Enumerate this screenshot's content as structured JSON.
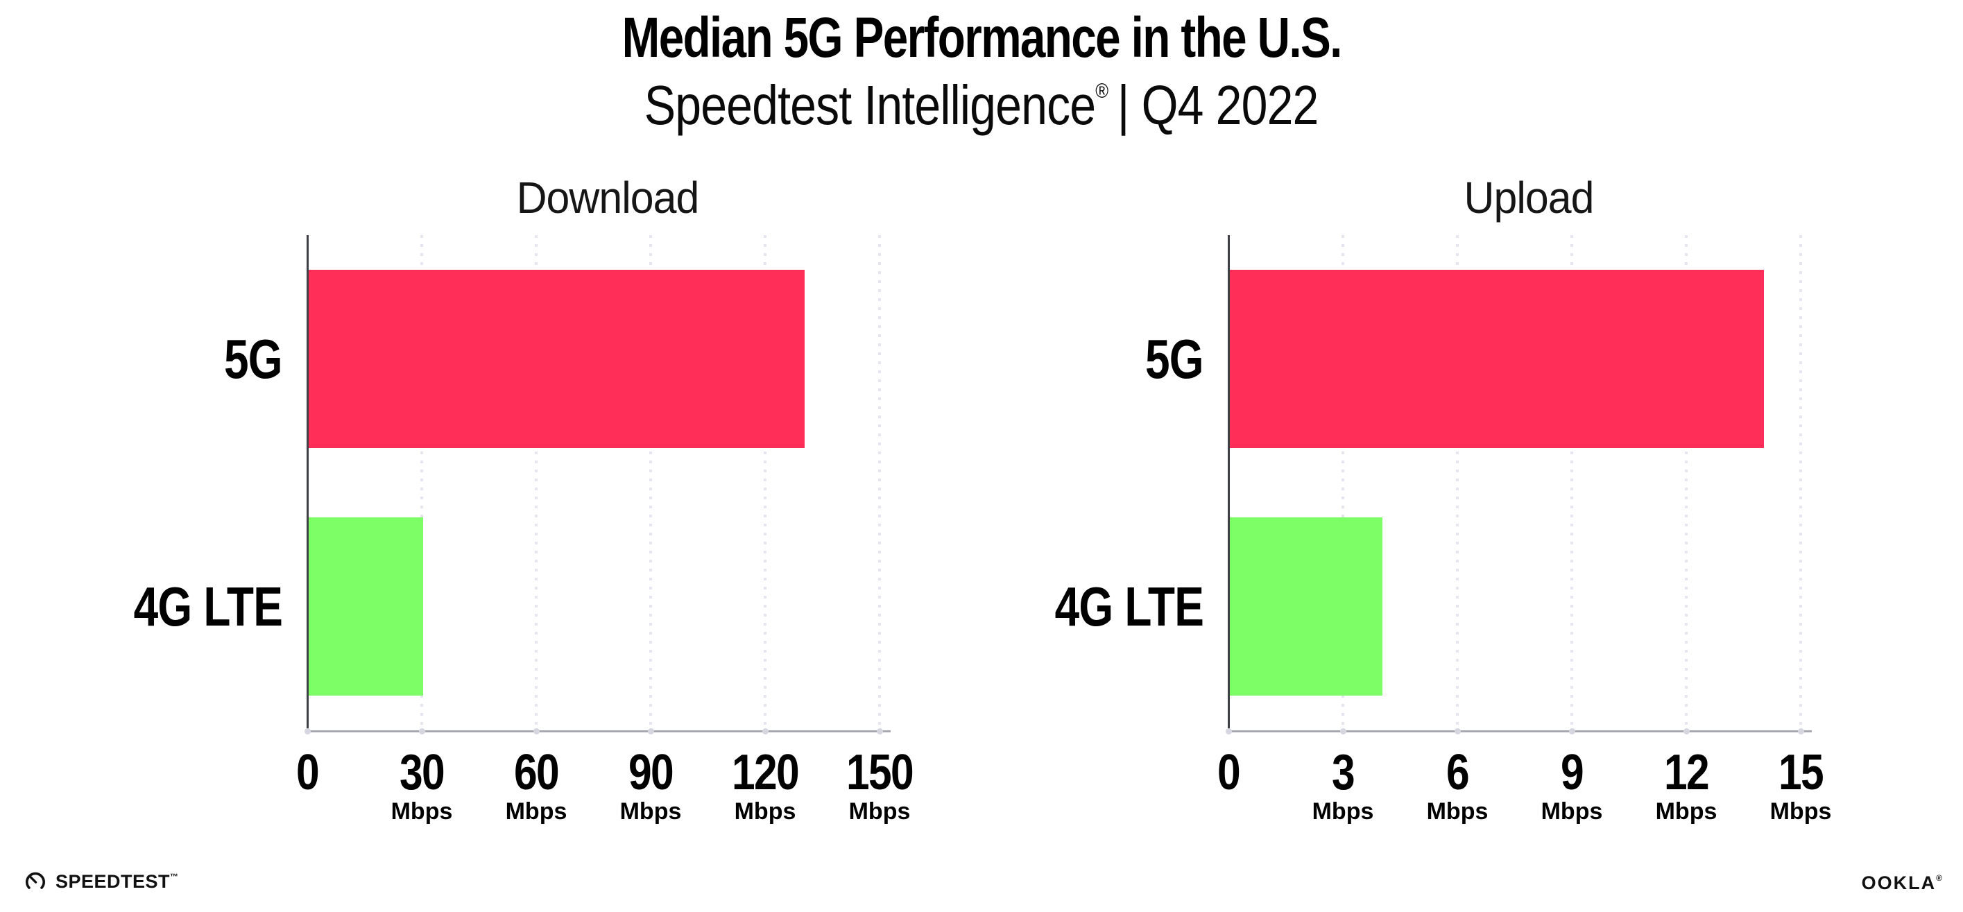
{
  "page": {
    "title": "Median 5G Performance in the U.S.",
    "subtitle_brand": "Speedtest Intelligence",
    "subtitle_reg": "®",
    "subtitle_period": "| Q4 2022",
    "background": "#FFFFFF"
  },
  "chart_data": [
    {
      "type": "bar",
      "orientation": "horizontal",
      "title": "Download",
      "categories": [
        "5G",
        "4G LTE"
      ],
      "values": [
        130,
        30
      ],
      "unit": "Mbps",
      "xlim": [
        0,
        150
      ],
      "ticks": [
        0,
        30,
        60,
        90,
        120,
        150
      ],
      "tick_unit_label": "Mbps",
      "bar_colors": [
        "#FF2E59",
        "#7EFE66"
      ],
      "grid": "dotted-vertical",
      "legend": "none"
    },
    {
      "type": "bar",
      "orientation": "horizontal",
      "title": "Upload",
      "categories": [
        "5G",
        "4G LTE"
      ],
      "values": [
        14,
        4
      ],
      "unit": "Mbps",
      "xlim": [
        0,
        15
      ],
      "ticks": [
        0,
        3,
        6,
        9,
        12,
        15
      ],
      "tick_unit_label": "Mbps",
      "bar_colors": [
        "#FF2E59",
        "#7EFE66"
      ],
      "grid": "dotted-vertical",
      "legend": "none"
    }
  ],
  "colors": {
    "bar_5g": "#FF2E59",
    "bar_4g_lte": "#7EFE66",
    "gridline": "#E6E6F0",
    "x_axis": "#A8A8B0",
    "y_axis": "#3F3F46",
    "tick_dot": "#D6D6E0",
    "text": "#000000"
  },
  "footer": {
    "speedtest_label": "SPEEDTEST",
    "speedtest_tm": "™",
    "ookla_label": "OOKLA",
    "ookla_reg": "®"
  }
}
